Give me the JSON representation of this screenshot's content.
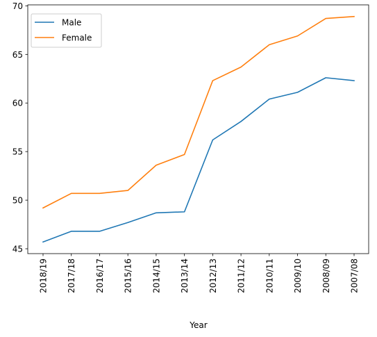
{
  "chart_data": {
    "type": "line",
    "title": "",
    "xlabel": "Year",
    "ylabel": "",
    "categories": [
      "2018/19",
      "2017/18",
      "2016/17",
      "2015/16",
      "2014/15",
      "2013/14",
      "2012/13",
      "2011/12",
      "2010/11",
      "2009/10",
      "2008/09",
      "2007/08"
    ],
    "series": [
      {
        "name": "Male",
        "color": "#1f77b4",
        "values": [
          45.7,
          46.8,
          46.8,
          47.7,
          48.7,
          48.8,
          56.2,
          58.1,
          60.4,
          61.1,
          62.6,
          62.3
        ]
      },
      {
        "name": "Female",
        "color": "#ff7f0e",
        "values": [
          49.2,
          50.7,
          50.7,
          51.0,
          53.6,
          54.7,
          62.3,
          63.7,
          66.0,
          66.9,
          68.7,
          68.9
        ]
      }
    ],
    "ylim": [
      44.5,
      70.1
    ],
    "yticks": [
      45,
      50,
      55,
      60,
      65,
      70
    ],
    "grid": false,
    "legend_position": "upper-left"
  }
}
